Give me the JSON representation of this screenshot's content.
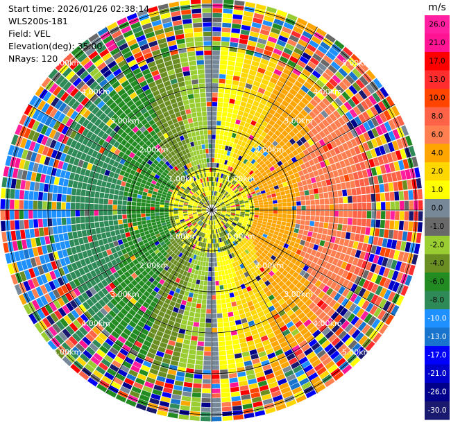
{
  "header": {
    "start_time": "Start time: 2026/01/26 02:38:14",
    "instrument": "WLS200s-181",
    "field": "Field: VEL",
    "elevation": "Elevation(deg): 35.00",
    "nrays": "NRays: 120"
  },
  "chart_data": {
    "type": "polar_ppi",
    "field": "VEL",
    "n_rays": 120,
    "range_rings_km": [
      "1.00km",
      "2.00km",
      "3.00km",
      "4.00km",
      "5.00km"
    ],
    "colorbar": {
      "unit": "m/s",
      "labels": [
        "26.0",
        "21.0",
        "17.0",
        "13.0",
        "10.0",
        "8.0",
        "6.0",
        "4.0",
        "2.0",
        "1.0",
        "0.0",
        "-1.0",
        "-2.0",
        "-4.0",
        "-6.0",
        "-8.0",
        "-10.0",
        "-13.0",
        "-17.0",
        "-21.0",
        "-26.0",
        "-30.0"
      ],
      "colors": [
        "#ff1fa0",
        "#ff1493",
        "#ff0000",
        "#ff2d2d",
        "#ff4500",
        "#ff6347",
        "#ff7f50",
        "#ffa500",
        "#ffd700",
        "#ffff00",
        "#778899",
        "#696969",
        "#9acd32",
        "#6b8e23",
        "#228b22",
        "#2e8b57",
        "#1e90ff",
        "#1874cd",
        "#0000ff",
        "#0000cd",
        "#00008b",
        "#191970"
      ]
    }
  }
}
